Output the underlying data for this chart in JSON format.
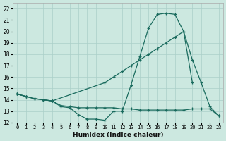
{
  "xlabel": "Humidex (Indice chaleur)",
  "xlim": [
    -0.5,
    23.5
  ],
  "ylim": [
    12,
    22.5
  ],
  "yticks": [
    12,
    13,
    14,
    15,
    16,
    17,
    18,
    19,
    20,
    21,
    22
  ],
  "xticks": [
    0,
    1,
    2,
    3,
    4,
    5,
    6,
    7,
    8,
    9,
    10,
    11,
    12,
    13,
    14,
    15,
    16,
    17,
    18,
    19,
    20,
    21,
    22,
    23
  ],
  "background_color": "#cce8e0",
  "grid_color": "#aacfc8",
  "line_color": "#1a6b5e",
  "line1_x": [
    0,
    1,
    2,
    3,
    4,
    5,
    6,
    7,
    8,
    9,
    10,
    11,
    12,
    13,
    14,
    15,
    16,
    17,
    18,
    19,
    20
  ],
  "line1_y": [
    14.5,
    14.3,
    14.1,
    14.0,
    13.9,
    13.4,
    13.3,
    12.7,
    12.3,
    12.3,
    12.2,
    13.0,
    13.0,
    15.3,
    17.8,
    20.3,
    21.5,
    21.6,
    21.5,
    20.0,
    15.5
  ],
  "line2_x": [
    0,
    1,
    2,
    3,
    4,
    10,
    11,
    12,
    13,
    14,
    15,
    16,
    17,
    18,
    19,
    20,
    21,
    22,
    23
  ],
  "line2_y": [
    14.5,
    14.3,
    14.1,
    14.0,
    13.9,
    15.5,
    16.0,
    16.5,
    17.0,
    17.5,
    18.0,
    18.5,
    19.0,
    19.5,
    20.0,
    17.5,
    15.5,
    13.4,
    12.6
  ],
  "line3_x": [
    0,
    1,
    2,
    3,
    4,
    5,
    6,
    7,
    8,
    9,
    10,
    11,
    12,
    13,
    14,
    15,
    16,
    17,
    18,
    19,
    20,
    21,
    22,
    23
  ],
  "line3_y": [
    14.5,
    14.3,
    14.1,
    14.0,
    13.9,
    13.5,
    13.4,
    13.3,
    13.3,
    13.3,
    13.3,
    13.3,
    13.2,
    13.2,
    13.1,
    13.1,
    13.1,
    13.1,
    13.1,
    13.1,
    13.2,
    13.2,
    13.2,
    12.6
  ]
}
